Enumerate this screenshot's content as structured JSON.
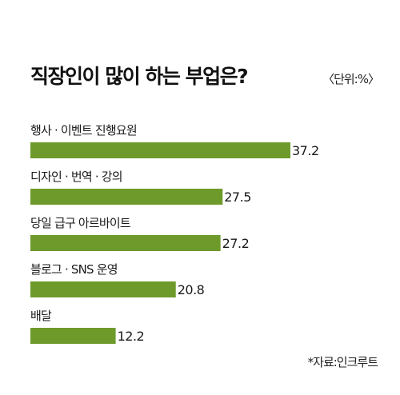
{
  "chart_data": {
    "type": "bar",
    "orientation": "horizontal",
    "title": "직장인이 많이 하는 부업은?",
    "unit": "〈단위:%〉",
    "source": "*자료:인크루트",
    "categories": [
      "행사 · 이벤트 진행요원",
      "디자인 · 번역 · 강의",
      "당일 급구 아르바이트",
      "블로그 · SNS 운영",
      "배달"
    ],
    "values": [
      37.2,
      27.5,
      27.2,
      20.8,
      12.2
    ],
    "value_labels": [
      "37.2",
      "27.5",
      "27.2",
      "20.8",
      "12.2"
    ],
    "bar_color": "#6e9a2b",
    "xlim": [
      0,
      37.2
    ],
    "grid": false,
    "legend": "none"
  }
}
